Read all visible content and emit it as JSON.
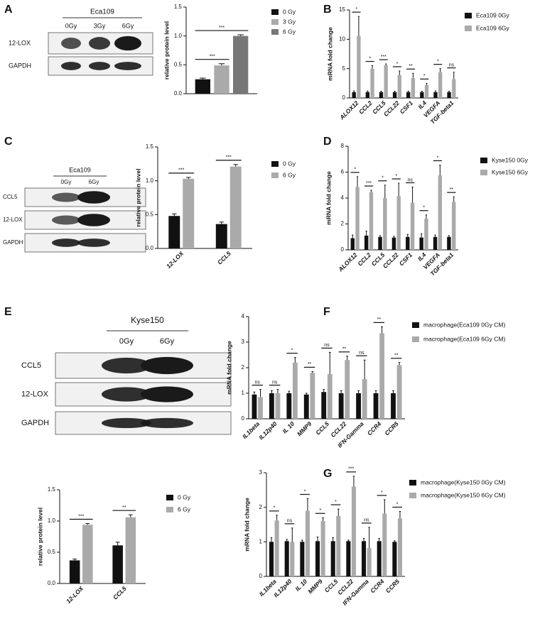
{
  "panel_labels": [
    "A",
    "B",
    "C",
    "D",
    "E",
    "F",
    "G"
  ],
  "blots": [
    {
      "cell": "Eca109",
      "lanes": [
        "0Gy",
        "3Gy",
        "6Gy"
      ],
      "rows": [
        "12-LOX",
        "GAPDH"
      ]
    },
    {
      "cell": "Eca109",
      "lanes": [
        "0Gy",
        "6Gy"
      ],
      "rows": [
        "CCL5",
        "12-LOX",
        "GAPDH"
      ]
    },
    {
      "cell": "Kyse150",
      "lanes": [
        "0Gy",
        "6Gy"
      ],
      "rows": [
        "CCL5",
        "12-LOX",
        "GAPDH"
      ]
    }
  ],
  "chart_data": [
    {
      "type": "bar",
      "y_label": "relative protein level",
      "categories": [
        null
      ],
      "series": [
        {
          "name": "0 Gy",
          "color": "#111111",
          "values": [
            0.25
          ],
          "errors": [
            0.02
          ],
          "stars": [
            null
          ]
        },
        {
          "name": "3 Gy",
          "color": "#aaaaaa",
          "values": [
            0.49
          ],
          "errors": [
            0.03
          ],
          "stars": [
            "***"
          ]
        },
        {
          "name": "6 Gy",
          "color": "#777777",
          "values": [
            1.0
          ],
          "errors": [
            0.02
          ],
          "stars": [
            "***"
          ]
        }
      ],
      "ylim": [
        0,
        1.5
      ],
      "yticks": [
        {
          "value": 0,
          "label": "0.0"
        },
        0.5,
        {
          "value": 1,
          "label": "1.0"
        },
        1.5
      ]
    },
    {
      "type": "bar",
      "y_label": "mRNA fold change",
      "categories": [
        "ALOX12",
        "CCL2",
        "CCL5",
        "CCL22",
        "CSF1",
        "IL4",
        "VEGFA",
        "TGF-beta1"
      ],
      "series": [
        {
          "name": "Eca109 0Gy",
          "color": "#111111",
          "values": [
            1,
            1,
            1,
            1,
            1,
            1,
            1,
            1
          ],
          "errors": [
            0.2,
            0.2,
            0.15,
            0.15,
            0.15,
            0.15,
            0.2,
            0.15
          ],
          "stars": [
            null,
            null,
            null,
            null,
            null,
            null,
            null,
            null
          ]
        },
        {
          "name": "Eca109 6Gy",
          "color": "#aaaaaa",
          "values": [
            10.6,
            5.0,
            5.6,
            3.9,
            3.4,
            2.2,
            4.4,
            3.2
          ],
          "errors": [
            3.3,
            0.5,
            0.2,
            0.7,
            0.8,
            0.3,
            0.6,
            1.2
          ],
          "stars": [
            "*",
            "*",
            "***",
            "*",
            "**",
            "*",
            "*",
            "ns"
          ]
        }
      ],
      "ylim": [
        0,
        15
      ],
      "yticks": [
        0,
        5,
        10,
        15
      ]
    },
    {
      "type": "bar",
      "y_label": "relative protein level",
      "categories": [
        "12-LOX",
        "CCL5"
      ],
      "series": [
        {
          "name": "0 Gy",
          "color": "#111111",
          "values": [
            0.48,
            0.36
          ],
          "errors": [
            0.03,
            0.03
          ],
          "stars": [
            null,
            null
          ]
        },
        {
          "name": "6 Gy",
          "color": "#aaaaaa",
          "values": [
            1.03,
            1.21
          ],
          "errors": [
            0.02,
            0.03
          ],
          "stars": [
            "***",
            "***"
          ]
        }
      ],
      "ylim": [
        0,
        1.5
      ],
      "yticks": [
        {
          "value": 0,
          "label": "0.0"
        },
        0.5,
        {
          "value": 1,
          "label": "1.0"
        },
        1.5
      ]
    },
    {
      "type": "bar",
      "y_label": "mRNA fold change",
      "categories": [
        "ALOX12",
        "CCL2",
        "CCL5",
        "CCL22",
        "CSF1",
        "IL4",
        "VEGFA",
        "TGF-beta1"
      ],
      "series": [
        {
          "name": "Kyse150 0Gy",
          "color": "#111111",
          "values": [
            0.9,
            1.1,
            1.0,
            0.95,
            1.0,
            0.95,
            1.0,
            1.0
          ],
          "errors": [
            0.25,
            0.35,
            0.1,
            0.1,
            0.2,
            0.3,
            0.15,
            0.1
          ],
          "stars": [
            null,
            null,
            null,
            null,
            null,
            null,
            null,
            null
          ]
        },
        {
          "name": "Kyse150 6Gy",
          "color": "#aaaaaa",
          "values": [
            4.85,
            4.45,
            4.0,
            4.15,
            3.65,
            2.4,
            5.75,
            3.7
          ],
          "errors": [
            0.8,
            0.15,
            1.0,
            1.0,
            1.2,
            0.3,
            0.8,
            0.4
          ],
          "stars": [
            "*",
            "***",
            "*",
            "*",
            "ns",
            "*",
            "*",
            "**"
          ]
        }
      ],
      "ylim": [
        0,
        8
      ],
      "yticks": [
        0,
        2,
        4,
        6,
        8
      ]
    },
    {
      "type": "bar",
      "y_label": "relative protein level",
      "categories": [
        "12-LOX",
        "CCL5"
      ],
      "series": [
        {
          "name": "0 Gy",
          "color": "#111111",
          "values": [
            0.37,
            0.61
          ],
          "errors": [
            0.02,
            0.05
          ],
          "stars": [
            null,
            null
          ]
        },
        {
          "name": "6 Gy",
          "color": "#aaaaaa",
          "values": [
            0.94,
            1.06
          ],
          "errors": [
            0.02,
            0.04
          ],
          "stars": [
            "***",
            "**"
          ]
        }
      ],
      "ylim": [
        0,
        1.5
      ],
      "yticks": [
        {
          "value": 0,
          "label": "0.0"
        },
        0.5,
        {
          "value": 1,
          "label": "1.0"
        },
        1.5
      ]
    },
    {
      "type": "bar",
      "y_label": "mRNA fold change",
      "categories": [
        "IL1beta",
        "IL12p40",
        "IL 10",
        "MMP9",
        "CCL5",
        "CCL22",
        "IFN-Gamma",
        "CCR4",
        "CCR5"
      ],
      "series": [
        {
          "name": "macrophage(Eca109 0Gy CM)",
          "color": "#111111",
          "values": [
            0.95,
            1.0,
            1.0,
            0.95,
            1.05,
            1.0,
            1.0,
            1.0,
            1.0
          ],
          "errors": [
            0.1,
            0.1,
            0.08,
            0.05,
            0.1,
            0.1,
            0.1,
            0.1,
            0.1
          ],
          "stars": [
            null,
            null,
            null,
            null,
            null,
            null,
            null,
            null,
            null
          ]
        },
        {
          "name": "macrophage(Eca109 6Gy CM)",
          "color": "#aaaaaa",
          "values": [
            0.85,
            1.0,
            2.2,
            1.8,
            1.75,
            2.3,
            1.55,
            3.35,
            2.1
          ],
          "errors": [
            0.3,
            0.15,
            0.2,
            0.05,
            0.85,
            0.15,
            0.75,
            0.25,
            0.1
          ],
          "stars": [
            "ns",
            "ns",
            "*",
            "**",
            "ns",
            "**",
            "ns",
            "**",
            "**"
          ]
        }
      ],
      "ylim": [
        0,
        4
      ],
      "yticks": [
        0,
        1,
        2,
        3,
        4
      ]
    },
    {
      "type": "bar",
      "y_label": "mRNA fold change",
      "categories": [
        "IL1beta",
        "IL12p40",
        "IL 10",
        "MMP9",
        "CCL5",
        "CCL22",
        "IFN-Gamma",
        "CCR4",
        "CCR5"
      ],
      "series": [
        {
          "name": "macrophage(Kyse150 0Gy CM)",
          "color": "#111111",
          "values": [
            1.0,
            1.02,
            1.0,
            1.02,
            1.02,
            1.02,
            1.02,
            1.02,
            1.0
          ],
          "errors": [
            0.12,
            0.05,
            0.05,
            0.12,
            0.1,
            0.03,
            0.08,
            0.08,
            0.03
          ],
          "stars": [
            null,
            null,
            null,
            null,
            null,
            null,
            null,
            null,
            null
          ]
        },
        {
          "name": "macrophage(Kyse150 6Gy CM)",
          "color": "#aaaaaa",
          "values": [
            1.62,
            1.0,
            1.9,
            1.6,
            1.75,
            2.6,
            0.82,
            1.82,
            1.68
          ],
          "errors": [
            0.15,
            0.4,
            0.35,
            0.1,
            0.2,
            0.3,
            0.6,
            0.4,
            0.2
          ],
          "stars": [
            "*",
            "ns",
            "*",
            "*",
            "*",
            "***",
            "ns",
            "*",
            "*"
          ]
        }
      ],
      "ylim": [
        0,
        3
      ],
      "yticks": [
        0,
        1,
        2,
        3
      ]
    }
  ]
}
